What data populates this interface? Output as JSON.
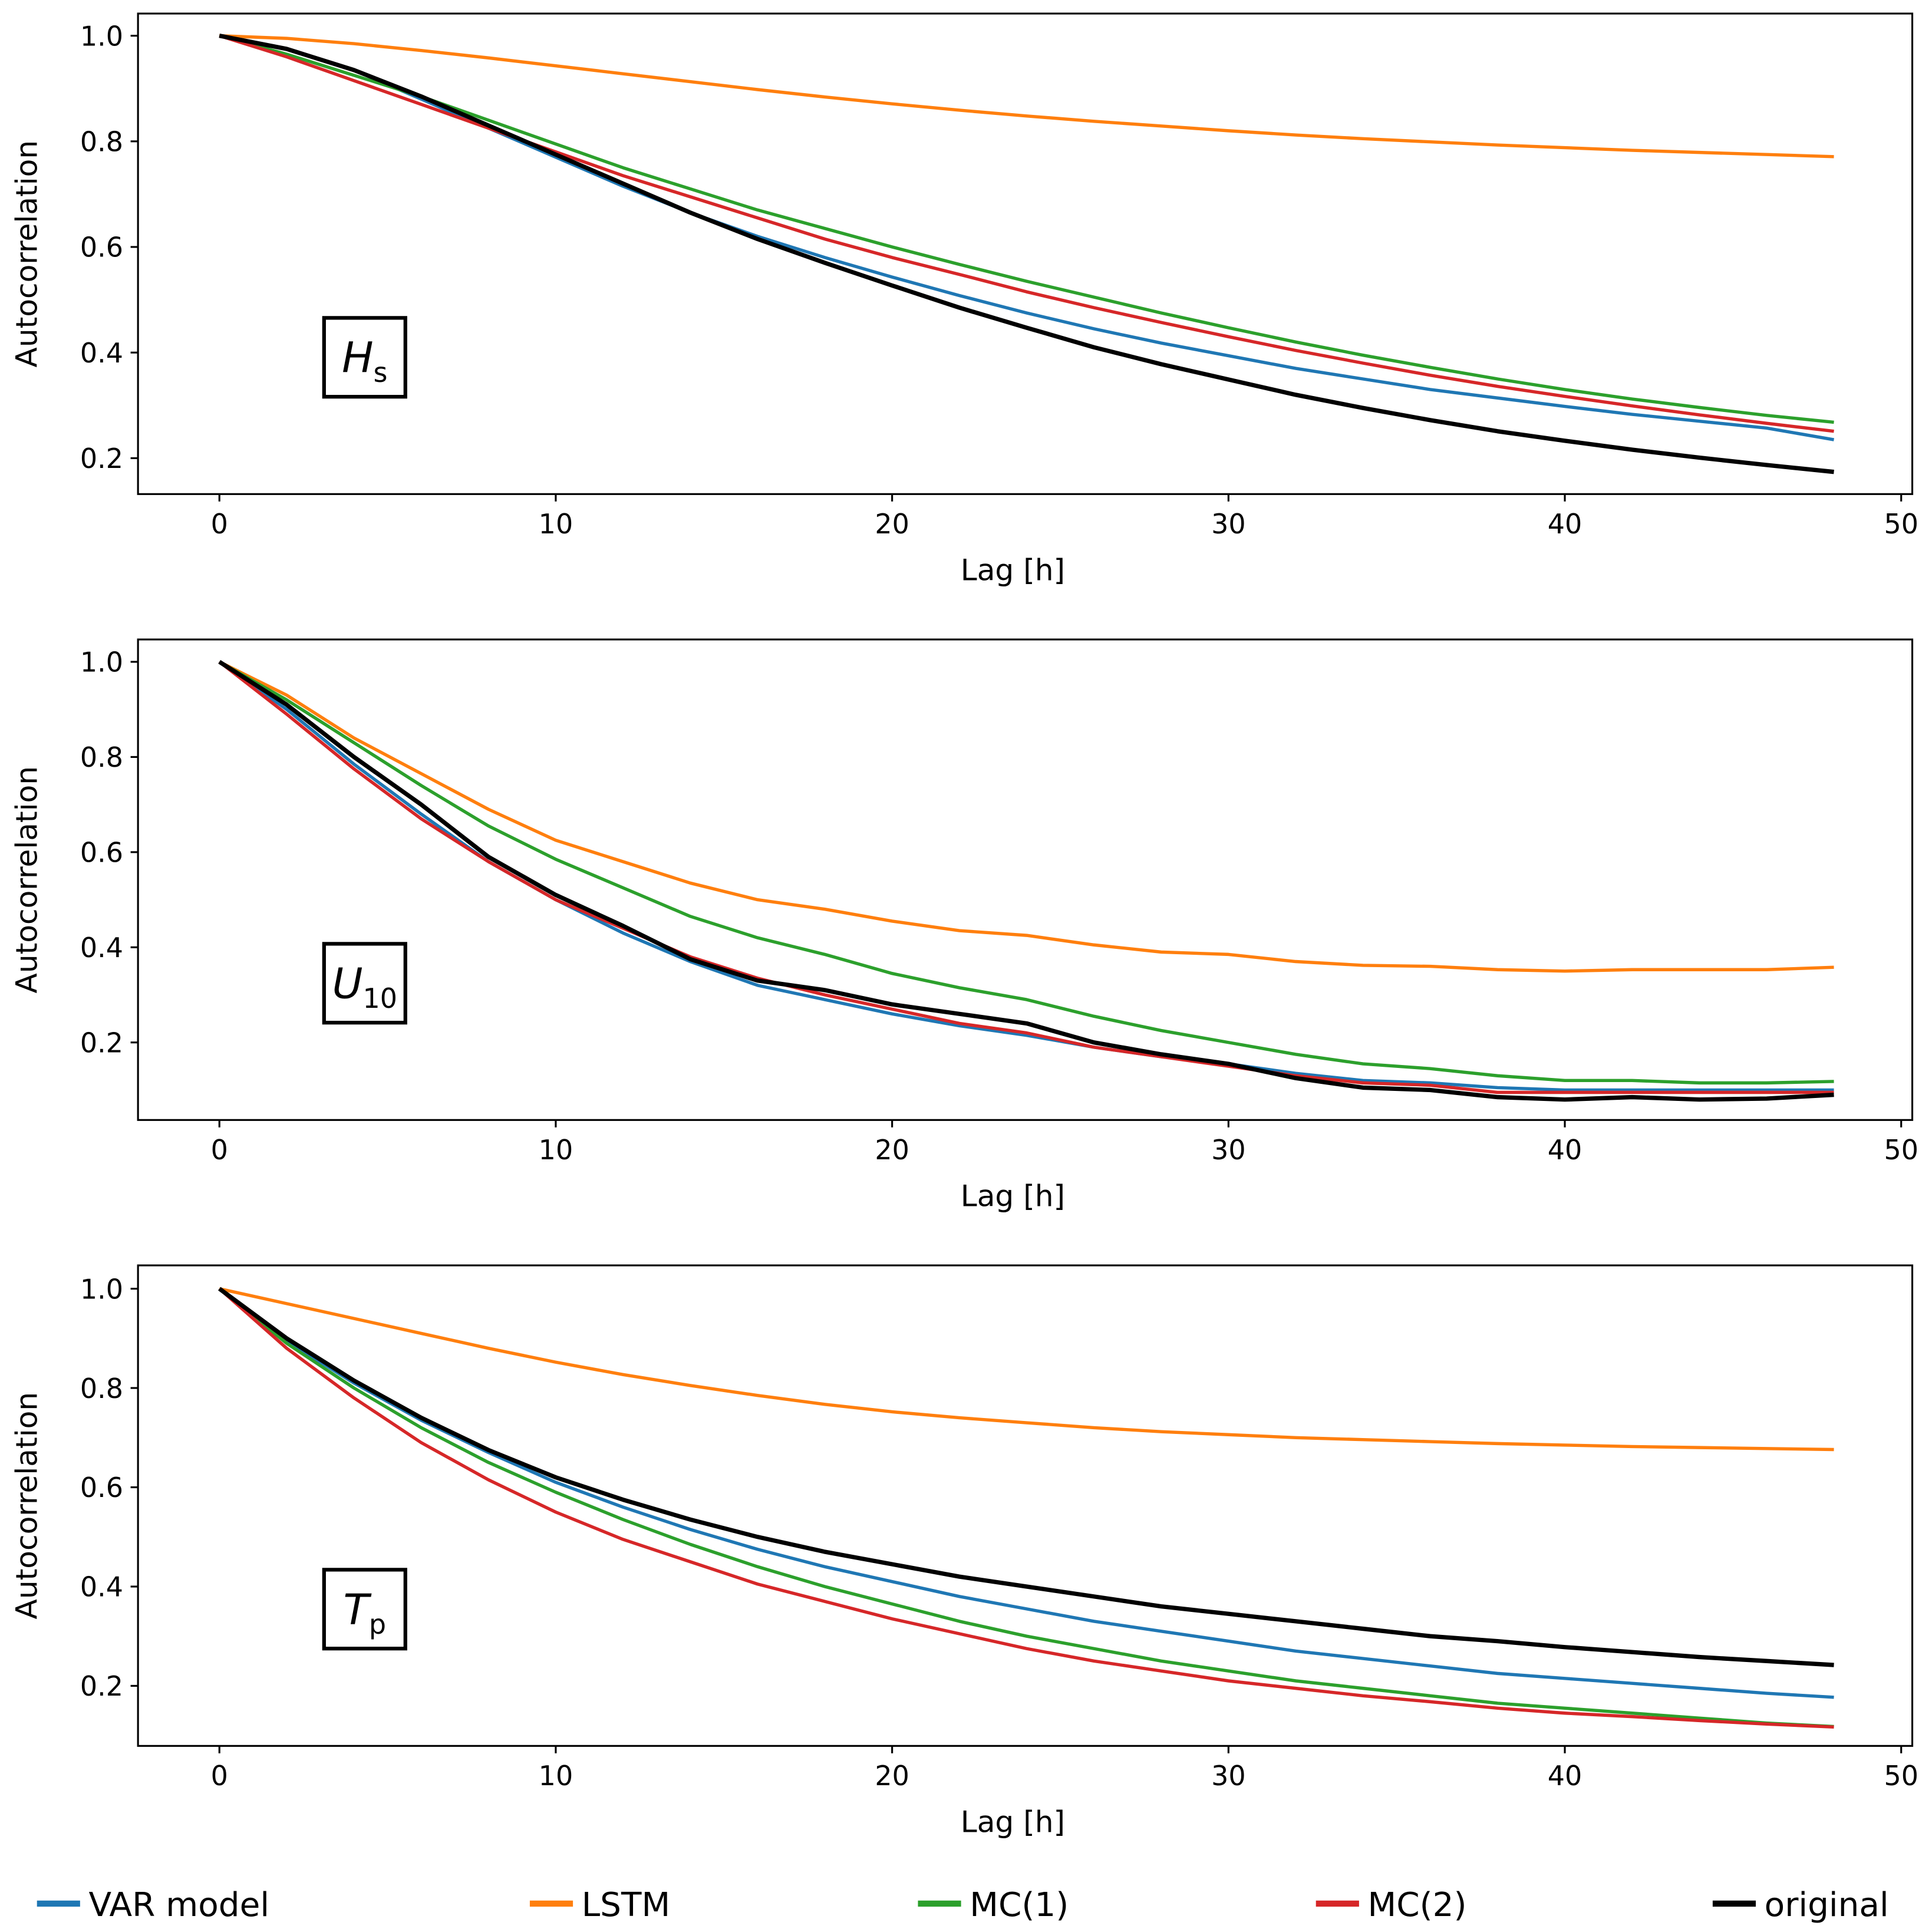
{
  "chart_data": [
    {
      "type": "line",
      "xlabel": "Lag [h]",
      "ylabel": "Autocorrelation",
      "annotation": {
        "text": "H",
        "subscript": "s"
      },
      "x": [
        0,
        2,
        4,
        6,
        8,
        10,
        12,
        14,
        16,
        18,
        20,
        22,
        24,
        26,
        28,
        30,
        32,
        34,
        36,
        38,
        40,
        42,
        44,
        46,
        48
      ],
      "xlim": [
        -2.42,
        50.33
      ],
      "xticks": [
        0,
        10,
        20,
        30,
        40,
        50
      ],
      "ylim": [
        0.132,
        1.042
      ],
      "yticks": [
        0.2,
        0.4,
        0.6,
        0.8,
        {
          "value": 1,
          "label": "1.0"
        }
      ],
      "series": [
        {
          "name": "VAR model",
          "color": "#1f77b4",
          "values": [
            1,
            0.975,
            0.935,
            0.88,
            0.825,
            0.77,
            0.715,
            0.665,
            0.62,
            0.58,
            0.543,
            0.508,
            0.475,
            0.445,
            0.418,
            0.394,
            0.37,
            0.35,
            0.33,
            0.314,
            0.298,
            0.283,
            0.27,
            0.257,
            0.235
          ]
        },
        {
          "name": "LSTM",
          "color": "#ff7f0e",
          "values": [
            1,
            0.995,
            0.985,
            0.972,
            0.958,
            0.943,
            0.928,
            0.913,
            0.898,
            0.884,
            0.871,
            0.859,
            0.848,
            0.838,
            0.829,
            0.82,
            0.812,
            0.805,
            0.799,
            0.793,
            0.788,
            0.783,
            0.779,
            0.775,
            0.771
          ]
        },
        {
          "name": "MC(1)",
          "color": "#2ca02c",
          "values": [
            1,
            0.965,
            0.925,
            0.885,
            0.84,
            0.795,
            0.75,
            0.71,
            0.67,
            0.635,
            0.6,
            0.567,
            0.535,
            0.505,
            0.475,
            0.447,
            0.42,
            0.395,
            0.372,
            0.35,
            0.33,
            0.312,
            0.296,
            0.281,
            0.268
          ]
        },
        {
          "name": "MC(2)",
          "color": "#d62728",
          "values": [
            1,
            0.96,
            0.915,
            0.87,
            0.825,
            0.78,
            0.735,
            0.695,
            0.655,
            0.615,
            0.58,
            0.548,
            0.515,
            0.485,
            0.457,
            0.43,
            0.404,
            0.38,
            0.357,
            0.336,
            0.317,
            0.299,
            0.282,
            0.266,
            0.251
          ]
        },
        {
          "name": "original",
          "color": "#000000",
          "values": [
            1,
            0.975,
            0.935,
            0.885,
            0.83,
            0.775,
            0.72,
            0.665,
            0.615,
            0.57,
            0.527,
            0.485,
            0.447,
            0.41,
            0.378,
            0.349,
            0.32,
            0.295,
            0.272,
            0.251,
            0.233,
            0.216,
            0.201,
            0.187,
            0.174
          ]
        }
      ]
    },
    {
      "type": "line",
      "xlabel": "Lag [h]",
      "ylabel": "Autocorrelation",
      "annotation": {
        "text": "U",
        "subscript": "10"
      },
      "x": [
        0,
        2,
        4,
        6,
        8,
        10,
        12,
        14,
        16,
        18,
        20,
        22,
        24,
        26,
        28,
        30,
        32,
        34,
        36,
        38,
        40,
        42,
        44,
        46,
        48
      ],
      "xlim": [
        -2.42,
        50.33
      ],
      "xticks": [
        0,
        10,
        20,
        30,
        40,
        50
      ],
      "ylim": [
        0.037,
        1.047
      ],
      "yticks": [
        0.2,
        0.4,
        0.6,
        0.8,
        {
          "value": 1,
          "label": "1.0"
        }
      ],
      "series": [
        {
          "color": "#1f77b4",
          "values": [
            1,
            0.9,
            0.785,
            0.68,
            0.58,
            0.5,
            0.43,
            0.37,
            0.32,
            0.29,
            0.26,
            0.235,
            0.215,
            0.19,
            0.17,
            0.155,
            0.135,
            0.12,
            0.115,
            0.105,
            0.1,
            0.1,
            0.1,
            0.1,
            0.1
          ]
        },
        {
          "color": "#ff7f0e",
          "values": [
            1,
            0.93,
            0.84,
            0.765,
            0.69,
            0.625,
            0.58,
            0.535,
            0.5,
            0.48,
            0.455,
            0.435,
            0.425,
            0.405,
            0.39,
            0.385,
            0.37,
            0.362,
            0.36,
            0.353,
            0.35,
            0.353,
            0.353,
            0.353,
            0.358
          ]
        },
        {
          "color": "#2ca02c",
          "values": [
            1,
            0.92,
            0.83,
            0.74,
            0.655,
            0.585,
            0.525,
            0.465,
            0.42,
            0.385,
            0.345,
            0.315,
            0.29,
            0.255,
            0.225,
            0.2,
            0.175,
            0.155,
            0.145,
            0.13,
            0.12,
            0.12,
            0.115,
            0.115,
            0.118
          ]
        },
        {
          "color": "#d62728",
          "values": [
            1,
            0.89,
            0.775,
            0.67,
            0.58,
            0.5,
            0.44,
            0.38,
            0.335,
            0.3,
            0.27,
            0.24,
            0.22,
            0.19,
            0.17,
            0.15,
            0.13,
            0.115,
            0.11,
            0.095,
            0.095,
            0.095,
            0.095,
            0.095,
            0.095
          ]
        },
        {
          "color": "#000000",
          "values": [
            1,
            0.91,
            0.8,
            0.7,
            0.59,
            0.51,
            0.445,
            0.375,
            0.33,
            0.31,
            0.28,
            0.26,
            0.24,
            0.2,
            0.175,
            0.155,
            0.125,
            0.105,
            0.1,
            0.085,
            0.08,
            0.085,
            0.08,
            0.082,
            0.09
          ]
        }
      ]
    },
    {
      "type": "line",
      "xlabel": "Lag [h]",
      "ylabel": "Autocorrelation",
      "annotation": {
        "text": "T",
        "subscript": "p"
      },
      "x": [
        0,
        2,
        4,
        6,
        8,
        10,
        12,
        14,
        16,
        18,
        20,
        22,
        24,
        26,
        28,
        30,
        32,
        34,
        36,
        38,
        40,
        42,
        44,
        46,
        48
      ],
      "xlim": [
        -2.42,
        50.33
      ],
      "xticks": [
        0,
        10,
        20,
        30,
        40,
        50
      ],
      "ylim": [
        0.079,
        1.047
      ],
      "yticks": [
        0.2,
        0.4,
        0.6,
        0.8,
        {
          "value": 1,
          "label": "1.0"
        }
      ],
      "series": [
        {
          "color": "#1f77b4",
          "values": [
            1,
            0.895,
            0.81,
            0.735,
            0.67,
            0.61,
            0.56,
            0.515,
            0.475,
            0.44,
            0.41,
            0.38,
            0.355,
            0.33,
            0.31,
            0.29,
            0.27,
            0.255,
            0.24,
            0.225,
            0.215,
            0.205,
            0.195,
            0.185,
            0.177
          ]
        },
        {
          "color": "#ff7f0e",
          "values": [
            1,
            0.97,
            0.94,
            0.91,
            0.88,
            0.852,
            0.827,
            0.805,
            0.785,
            0.767,
            0.752,
            0.74,
            0.73,
            0.72,
            0.712,
            0.706,
            0.7,
            0.696,
            0.692,
            0.688,
            0.685,
            0.682,
            0.68,
            0.678,
            0.676
          ]
        },
        {
          "color": "#2ca02c",
          "values": [
            1,
            0.89,
            0.8,
            0.72,
            0.65,
            0.59,
            0.535,
            0.485,
            0.44,
            0.4,
            0.365,
            0.33,
            0.3,
            0.275,
            0.25,
            0.23,
            0.21,
            0.195,
            0.18,
            0.165,
            0.155,
            0.145,
            0.135,
            0.125,
            0.118
          ]
        },
        {
          "color": "#d62728",
          "values": [
            1,
            0.88,
            0.78,
            0.69,
            0.615,
            0.55,
            0.495,
            0.45,
            0.405,
            0.37,
            0.335,
            0.305,
            0.275,
            0.25,
            0.23,
            0.21,
            0.195,
            0.18,
            0.168,
            0.155,
            0.145,
            0.138,
            0.13,
            0.123,
            0.117
          ]
        },
        {
          "color": "#000000",
          "values": [
            1,
            0.9,
            0.815,
            0.74,
            0.675,
            0.62,
            0.575,
            0.535,
            0.5,
            0.47,
            0.445,
            0.42,
            0.4,
            0.38,
            0.36,
            0.345,
            0.33,
            0.315,
            0.3,
            0.29,
            0.278,
            0.268,
            0.258,
            0.25,
            0.242
          ]
        }
      ]
    }
  ]
}
